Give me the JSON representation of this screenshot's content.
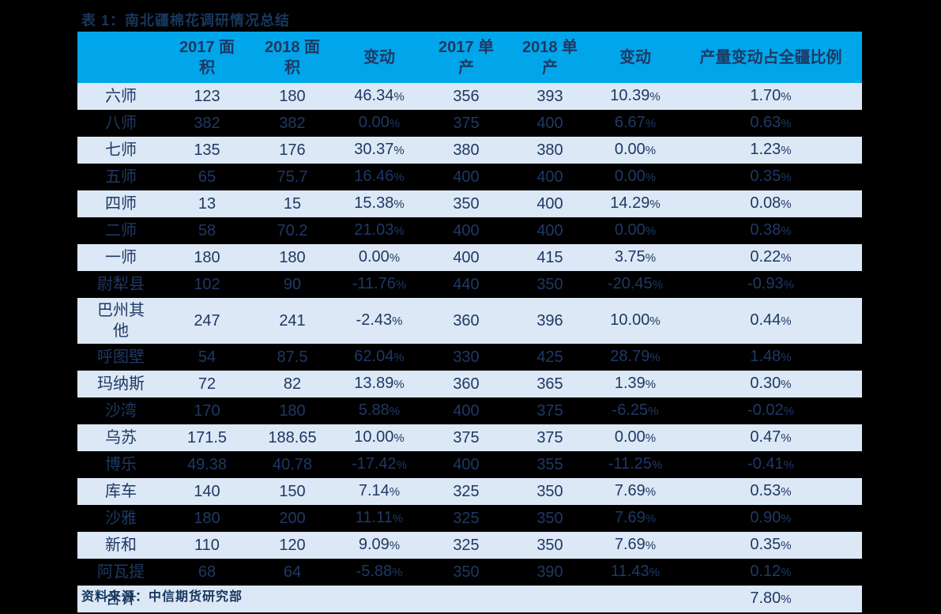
{
  "page": {
    "title": "表 1：南北疆棉花调研情况总结",
    "source_note": "资料来源：中信期货研究部"
  },
  "colors": {
    "background": "#000000",
    "header_bg": "#00A6E9",
    "row_light_bg": "#DCE8F5",
    "row_dark_bg": "#000000",
    "table_text": "#1F3864",
    "title_text": "#17375E"
  },
  "table": {
    "columns": [
      "",
      "2017 面\n积",
      "2018 面\n积",
      "变动",
      "2017 单\n产",
      "2018 单\n产",
      "变动",
      "产量变动占全疆比例"
    ],
    "rows": [
      {
        "name": "六师",
        "values": [
          "123",
          "180",
          "46.34%",
          "356",
          "393",
          "10.39%",
          "1.70%"
        ]
      },
      {
        "name": "八师",
        "values": [
          "382",
          "382",
          "0.00%",
          "375",
          "400",
          "6.67%",
          "0.63%"
        ]
      },
      {
        "name": "七师",
        "values": [
          "135",
          "176",
          "30.37%",
          "380",
          "380",
          "0.00%",
          "1.23%"
        ]
      },
      {
        "name": "五师",
        "values": [
          "65",
          "75.7",
          "16.46%",
          "400",
          "400",
          "0.00%",
          "0.35%"
        ]
      },
      {
        "name": "四师",
        "values": [
          "13",
          "15",
          "15.38%",
          "350",
          "400",
          "14.29%",
          "0.08%"
        ]
      },
      {
        "name": "二师",
        "values": [
          "58",
          "70.2",
          "21.03%",
          "400",
          "400",
          "0.00%",
          "0.38%"
        ]
      },
      {
        "name": "一师",
        "values": [
          "180",
          "180",
          "0.00%",
          "400",
          "415",
          "3.75%",
          "0.22%"
        ]
      },
      {
        "name": "尉犁县",
        "values": [
          "102",
          "90",
          "-11.76%",
          "440",
          "350",
          "-20.45%",
          "-0.93%"
        ]
      },
      {
        "name": "巴州其他",
        "values": [
          "247",
          "241",
          "-2.43%",
          "360",
          "396",
          "10.00%",
          "0.44%"
        ]
      },
      {
        "name": "呼图壁",
        "values": [
          "54",
          "87.5",
          "62.04%",
          "330",
          "425",
          "28.79%",
          "1.48%"
        ]
      },
      {
        "name": "玛纳斯",
        "values": [
          "72",
          "82",
          "13.89%",
          "360",
          "365",
          "1.39%",
          "0.30%"
        ]
      },
      {
        "name": "沙湾",
        "values": [
          "170",
          "180",
          "5.88%",
          "400",
          "375",
          "-6.25%",
          "-0.02%"
        ]
      },
      {
        "name": "乌苏",
        "values": [
          "171.5",
          "188.65",
          "10.00%",
          "375",
          "375",
          "0.00%",
          "0.47%"
        ]
      },
      {
        "name": "博乐",
        "values": [
          "49.38",
          "40.78",
          "-17.42%",
          "400",
          "355",
          "-11.25%",
          "-0.41%"
        ]
      },
      {
        "name": "库车",
        "values": [
          "140",
          "150",
          "7.14%",
          "325",
          "350",
          "7.69%",
          "0.53%"
        ]
      },
      {
        "name": "沙雅",
        "values": [
          "180",
          "200",
          "11.11%",
          "325",
          "350",
          "7.69%",
          "0.90%"
        ]
      },
      {
        "name": "新和",
        "values": [
          "110",
          "120",
          "9.09%",
          "325",
          "350",
          "7.69%",
          "0.35%"
        ]
      },
      {
        "name": "阿瓦提",
        "values": [
          "68",
          "64",
          "-5.88%",
          "350",
          "390",
          "11.43%",
          "0.12%"
        ]
      },
      {
        "name": "合计",
        "values": [
          "",
          "",
          "",
          "",
          "",
          "",
          "7.80%"
        ]
      }
    ]
  }
}
